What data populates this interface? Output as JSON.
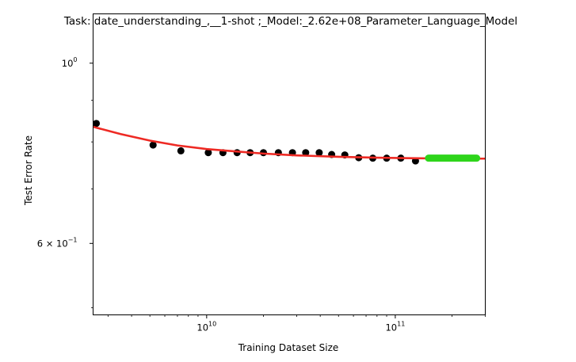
{
  "chart_data": {
    "type": "scatter",
    "title": "Task: date_understanding_,__1-shot ;_Model:_2.62e+08_Parameter_Language_Model",
    "xlabel": "Training Dataset Size",
    "ylabel": "Test Error Rate",
    "xscale": "log",
    "yscale": "log",
    "xlim": [
      2500000000.0,
      300000000000.0
    ],
    "ylim": [
      0.49,
      1.15
    ],
    "grid": false,
    "legend": "none",
    "x_ticks": [
      {
        "value": 10000000000.0,
        "base": "10",
        "exp": "10"
      },
      {
        "value": 100000000000.0,
        "base": "10",
        "exp": "11"
      }
    ],
    "y_ticks": [
      {
        "value": 1.0,
        "base": "10",
        "exp": "0",
        "prefix": ""
      },
      {
        "value": 0.6,
        "base": "10",
        "exp": "−1",
        "prefix": "6 × "
      }
    ],
    "series": [
      {
        "kind": "points",
        "color": "#000000",
        "points": [
          {
            "x": 2600000000.0,
            "y": 0.843
          },
          {
            "x": 5200000000.0,
            "y": 0.793
          },
          {
            "x": 7300000000.0,
            "y": 0.78
          },
          {
            "x": 10200000000.0,
            "y": 0.776
          },
          {
            "x": 12200000000.0,
            "y": 0.776
          },
          {
            "x": 14500000000.0,
            "y": 0.776
          },
          {
            "x": 17000000000.0,
            "y": 0.776
          },
          {
            "x": 20000000000.0,
            "y": 0.776
          },
          {
            "x": 24000000000.0,
            "y": 0.776
          },
          {
            "x": 28500000000.0,
            "y": 0.776
          },
          {
            "x": 33500000000.0,
            "y": 0.776
          },
          {
            "x": 39500000000.0,
            "y": 0.776
          },
          {
            "x": 46000000000.0,
            "y": 0.772
          },
          {
            "x": 54000000000.0,
            "y": 0.771
          },
          {
            "x": 64000000000.0,
            "y": 0.765
          },
          {
            "x": 76000000000.0,
            "y": 0.764
          },
          {
            "x": 90000000000.0,
            "y": 0.764
          },
          {
            "x": 107000000000.0,
            "y": 0.764
          },
          {
            "x": 128000000000.0,
            "y": 0.758
          }
        ]
      },
      {
        "kind": "fit",
        "color": "#ee2a24",
        "points": [
          {
            "x": 2500000000.0,
            "y": 0.835
          },
          {
            "x": 3500000000.0,
            "y": 0.818
          },
          {
            "x": 5000000000.0,
            "y": 0.803
          },
          {
            "x": 7000000000.0,
            "y": 0.792
          },
          {
            "x": 10000000000.0,
            "y": 0.784
          },
          {
            "x": 15000000000.0,
            "y": 0.778
          },
          {
            "x": 20000000000.0,
            "y": 0.774
          },
          {
            "x": 30000000000.0,
            "y": 0.77
          },
          {
            "x": 50000000000.0,
            "y": 0.767
          },
          {
            "x": 80000000000.0,
            "y": 0.765
          },
          {
            "x": 120000000000.0,
            "y": 0.764
          },
          {
            "x": 200000000000.0,
            "y": 0.763
          },
          {
            "x": 300000000000.0,
            "y": 0.763
          }
        ]
      },
      {
        "kind": "band",
        "color": "#2ed51b",
        "points": [
          {
            "x": 150000000000.0,
            "y": 0.764
          },
          {
            "x": 270000000000.0,
            "y": 0.764
          }
        ]
      }
    ]
  }
}
